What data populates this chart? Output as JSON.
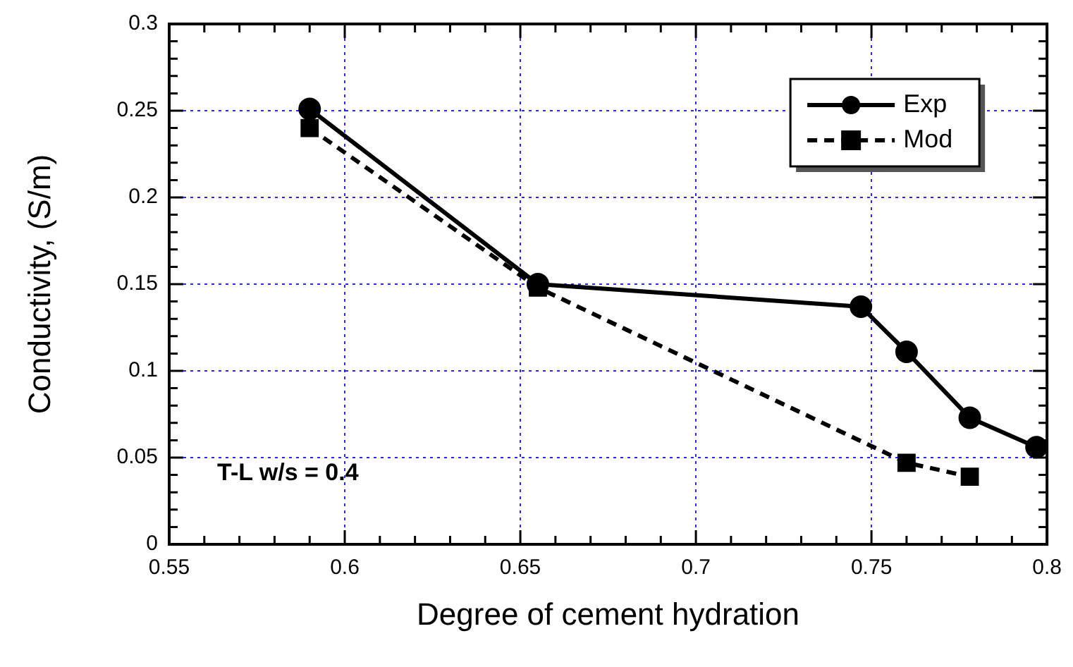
{
  "chart_data": {
    "type": "line",
    "xlabel": "Degree of cement hydration",
    "ylabel": "Conductivity, (S/m)",
    "xlim": [
      0.55,
      0.8
    ],
    "ylim": [
      0,
      0.3
    ],
    "xticks": [
      0.55,
      {
        "value": 0.56,
        "label": null
      },
      {
        "value": 0.57,
        "label": null
      },
      {
        "value": 0.58,
        "label": null
      },
      {
        "value": 0.59,
        "label": null
      },
      0.6,
      {
        "value": 0.61,
        "label": null
      },
      {
        "value": 0.62,
        "label": null
      },
      {
        "value": 0.63,
        "label": null
      },
      {
        "value": 0.64,
        "label": null
      },
      0.65,
      {
        "value": 0.66,
        "label": null
      },
      {
        "value": 0.67,
        "label": null
      },
      {
        "value": 0.68,
        "label": null
      },
      {
        "value": 0.69,
        "label": null
      },
      0.7,
      {
        "value": 0.71,
        "label": null
      },
      {
        "value": 0.72,
        "label": null
      },
      {
        "value": 0.73,
        "label": null
      },
      {
        "value": 0.74,
        "label": null
      },
      0.75,
      {
        "value": 0.76,
        "label": null
      },
      {
        "value": 0.77,
        "label": null
      },
      {
        "value": 0.78,
        "label": null
      },
      {
        "value": 0.79,
        "label": null
      },
      0.8
    ],
    "yticks": [
      0,
      {
        "value": 0.01,
        "label": null
      },
      {
        "value": 0.02,
        "label": null
      },
      {
        "value": 0.03,
        "label": null
      },
      {
        "value": 0.04,
        "label": null
      },
      0.05,
      {
        "value": 0.06,
        "label": null
      },
      {
        "value": 0.07,
        "label": null
      },
      {
        "value": 0.08,
        "label": null
      },
      {
        "value": 0.09,
        "label": null
      },
      0.1,
      {
        "value": 0.11,
        "label": null
      },
      {
        "value": 0.12,
        "label": null
      },
      {
        "value": 0.13,
        "label": null
      },
      {
        "value": 0.14,
        "label": null
      },
      0.15,
      {
        "value": 0.16,
        "label": null
      },
      {
        "value": 0.17,
        "label": null
      },
      {
        "value": 0.18,
        "label": null
      },
      {
        "value": 0.19,
        "label": null
      },
      0.2,
      {
        "value": 0.21,
        "label": null
      },
      {
        "value": 0.22,
        "label": null
      },
      {
        "value": 0.23,
        "label": null
      },
      {
        "value": 0.24,
        "label": null
      },
      0.25,
      {
        "value": 0.26,
        "label": null
      },
      {
        "value": 0.27,
        "label": null
      },
      {
        "value": 0.28,
        "label": null
      },
      {
        "value": 0.29,
        "label": null
      },
      0.3
    ],
    "series": [
      {
        "name": "Exp",
        "color": "#000000",
        "marker": "circle",
        "line_style": "solid",
        "x": [
          0.59,
          0.655,
          0.747,
          0.76,
          0.778,
          0.797
        ],
        "values": [
          0.251,
          0.15,
          0.137,
          0.111,
          0.073,
          0.056
        ]
      },
      {
        "name": "Mod",
        "color": "#000000",
        "marker": "square",
        "line_style": "dashed",
        "x": [
          0.59,
          0.655,
          0.76,
          0.778
        ],
        "values": [
          0.24,
          0.148,
          0.047,
          0.039
        ]
      }
    ],
    "grid": true,
    "legend": "top right",
    "annotations": [
      "T-L w/s = 0.4"
    ]
  }
}
